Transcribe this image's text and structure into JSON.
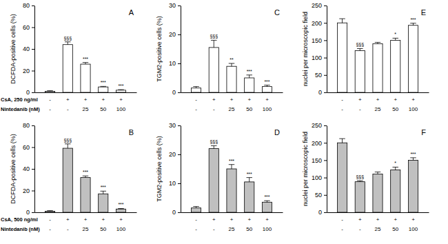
{
  "chart_data": [
    {
      "type": "bar",
      "title": "A",
      "y_label": "DCFDA-positive cells (%)",
      "categories": [
        null,
        null,
        null,
        null,
        null
      ],
      "values": [
        1,
        44,
        26,
        5,
        2
      ],
      "errors": [
        0.5,
        2.5,
        1.5,
        0.5,
        0.5
      ],
      "annotations": [
        null,
        "§§§",
        "***",
        "***",
        "***"
      ],
      "row_labels": [
        "CsA, 250 ng/ml",
        "Nintedanib (nM)"
      ],
      "x_rows": [
        [
          "-",
          "+",
          "+",
          "+",
          "+"
        ],
        [
          "-",
          "-",
          "25",
          "50",
          "100"
        ]
      ],
      "color": "#ffffff",
      "ylim": [
        0,
        80
      ],
      "yticks": [
        0,
        20,
        40,
        60,
        80
      ]
    },
    {
      "type": "bar",
      "title": "C",
      "y_label": "TGM2-positive cells (%)",
      "categories": [
        null,
        null,
        null,
        null,
        null
      ],
      "values": [
        1.5,
        15.5,
        9,
        5,
        2
      ],
      "errors": [
        0.5,
        2.5,
        1,
        1,
        0.5
      ],
      "annotations": [
        null,
        "§§§",
        "**",
        "***",
        "***"
      ],
      "x_rows": [
        [
          "-",
          "+",
          "+",
          "+",
          "+"
        ],
        [
          "-",
          "-",
          "25",
          "50",
          "100"
        ]
      ],
      "color": "#ffffff",
      "ylim": [
        0,
        30
      ],
      "yticks": [
        0,
        10,
        20,
        30
      ]
    },
    {
      "type": "bar",
      "title": "E",
      "y_label": "nuclei per microscopic field",
      "categories": [
        null,
        null,
        null,
        null,
        null
      ],
      "values": [
        200,
        120,
        140,
        150,
        193
      ],
      "errors": [
        12,
        6,
        4,
        6,
        6
      ],
      "annotations": [
        null,
        "§§§",
        null,
        "*",
        "***"
      ],
      "x_rows": [
        [
          "-",
          "+",
          "+",
          "+",
          "+"
        ],
        [
          "-",
          "-",
          "25",
          "50",
          "100"
        ]
      ],
      "color": "#ffffff",
      "ylim": [
        0,
        250
      ],
      "yticks": [
        0,
        50,
        100,
        150,
        200,
        250
      ]
    },
    {
      "type": "bar",
      "title": "B",
      "y_label": "DCFDA-positive cells (%)",
      "categories": [
        null,
        null,
        null,
        null,
        null
      ],
      "values": [
        1,
        59,
        32,
        17,
        3
      ],
      "errors": [
        0.5,
        4,
        1.5,
        2.5,
        0.5
      ],
      "annotations": [
        null,
        "§§§",
        "***",
        "***",
        "***"
      ],
      "row_labels": [
        "CsA, 500 ng/ml",
        "Nintedanib (nM)"
      ],
      "x_rows": [
        [
          "-",
          "+",
          "+",
          "+",
          "+"
        ],
        [
          "-",
          "-",
          "25",
          "50",
          "100"
        ]
      ],
      "color": "#c0c0c0",
      "ylim": [
        0,
        80
      ],
      "yticks": [
        0,
        20,
        40,
        60,
        80
      ]
    },
    {
      "type": "bar",
      "title": "D",
      "y_label": "TGM2-positive cells (%)",
      "categories": [
        null,
        null,
        null,
        null,
        null
      ],
      "values": [
        1.5,
        22,
        15,
        10.5,
        3.5
      ],
      "errors": [
        0.5,
        1,
        1.5,
        1.5,
        0.5
      ],
      "annotations": [
        null,
        "§§§",
        "***",
        "***",
        "***"
      ],
      "x_rows": [
        [
          "-",
          "+",
          "+",
          "+",
          "+"
        ],
        [
          "-",
          "-",
          "25",
          "50",
          "100"
        ]
      ],
      "color": "#c0c0c0",
      "ylim": [
        0,
        30
      ],
      "yticks": [
        0,
        10,
        20,
        30
      ]
    },
    {
      "type": "bar",
      "title": "F",
      "y_label": "nuclei per microscopic field",
      "categories": [
        null,
        null,
        null,
        null,
        null
      ],
      "values": [
        200,
        88,
        110,
        122,
        150
      ],
      "errors": [
        12,
        3,
        6,
        8,
        7
      ],
      "annotations": [
        null,
        "§§§",
        null,
        "*",
        "***"
      ],
      "x_rows": [
        [
          "-",
          "+",
          "+",
          "+",
          "+"
        ],
        [
          "-",
          "-",
          "25",
          "50",
          "100"
        ]
      ],
      "color": "#c0c0c0",
      "ylim": [
        0,
        250
      ],
      "yticks": [
        0,
        50,
        100,
        150,
        200,
        250
      ]
    }
  ]
}
